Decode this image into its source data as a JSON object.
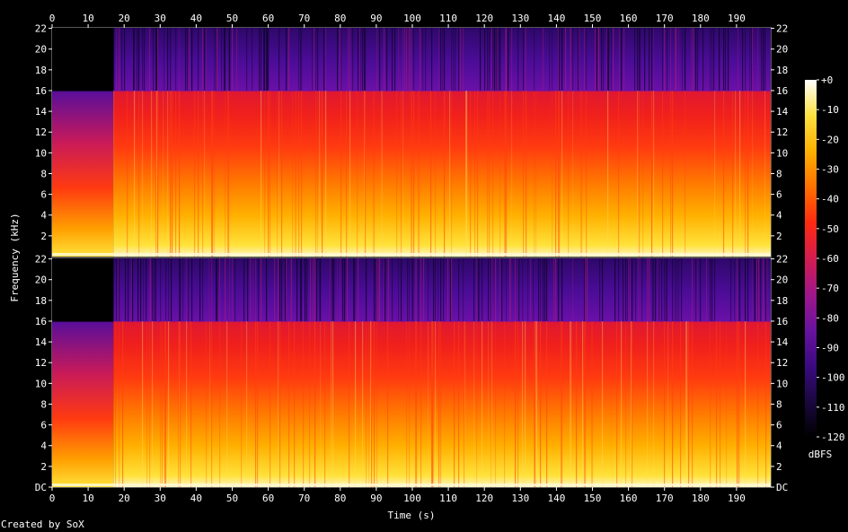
{
  "chart_data": {
    "type": "heatmap",
    "subtype": "spectrogram",
    "xlabel": "Time (s)",
    "ylabel": "Frequency (kHz)",
    "x_ticks": [
      0,
      10,
      20,
      30,
      40,
      50,
      60,
      70,
      80,
      90,
      100,
      110,
      120,
      130,
      140,
      150,
      160,
      170,
      180,
      190
    ],
    "xlim": [
      0,
      199.5
    ],
    "channels": [
      {
        "y_ticks": [
          "2",
          "4",
          "6",
          "8",
          "10",
          "12",
          "14",
          "16",
          "18",
          "20",
          "22"
        ],
        "ylim": [
          0,
          22.05
        ],
        "bottom_label": ""
      },
      {
        "y_ticks": [
          "DC",
          "2",
          "4",
          "6",
          "8",
          "10",
          "12",
          "14",
          "16",
          "18",
          "20",
          "22"
        ],
        "ylim": [
          0,
          22.05
        ],
        "bottom_label": "DC"
      }
    ],
    "intro_silence_end_s": 17,
    "intro_cutoff_khz": 16,
    "lowpass_cutoff_khz": 16,
    "colorbar": {
      "label": "dBFS",
      "ticks": [
        "+0",
        "-10",
        "-20",
        "-30",
        "-40",
        "-50",
        "-60",
        "-70",
        "-80",
        "-90",
        "-100",
        "-110",
        "-120"
      ],
      "range": [
        -120,
        0
      ],
      "colors": [
        "#000000",
        "#1a0840",
        "#3b0a82",
        "#6a12a0",
        "#a0168a",
        "#d41c50",
        "#ff2a10",
        "#ff7000",
        "#ffb000",
        "#ffe040",
        "#ffffff"
      ]
    },
    "grid": false
  },
  "footer": {
    "credit": "Created by SoX"
  }
}
